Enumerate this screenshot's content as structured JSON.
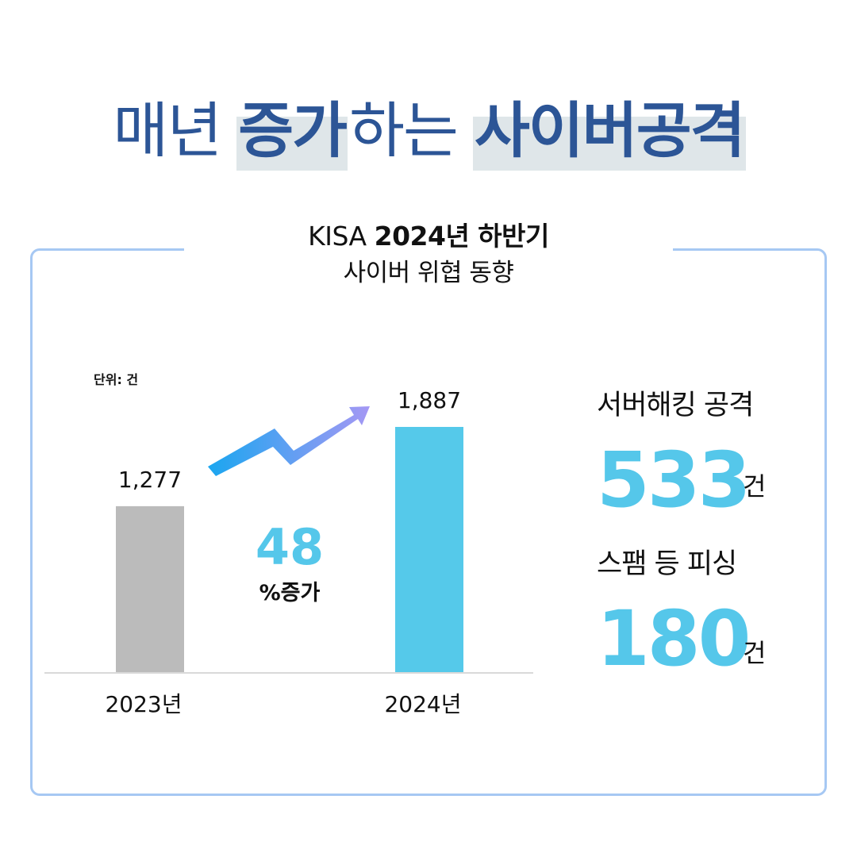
{
  "headline": {
    "seg1": "매년",
    "seg2": "증가",
    "seg3": "하는",
    "seg4": "사이버공격"
  },
  "panel": {
    "title_prefix": "KISA",
    "title_bold": "2024년 하반기",
    "subtitle": "사이버 위협 동향"
  },
  "chart_data": {
    "type": "bar",
    "categories": [
      "2023년",
      "2024년"
    ],
    "values": [
      1277,
      1887
    ],
    "value_labels": [
      "1,277",
      "1,887"
    ],
    "unit_label": "단위: 건",
    "colors": [
      "#bbbbbb",
      "#55c9ea"
    ],
    "ylim": [
      0,
      2000
    ],
    "increase_value": "48",
    "increase_label": "%증가"
  },
  "stats": [
    {
      "label": "서버해킹 공격",
      "value": "533",
      "unit": "건"
    },
    {
      "label": "스팸 등 피싱",
      "value": "180",
      "unit": "건"
    }
  ],
  "colors": {
    "headline": "#2c5596",
    "highlight": "#dfe6e9",
    "accent": "#55c7ea",
    "border": "#a6c8f3",
    "arrow_start": "#1aa6f0",
    "arrow_end": "#a598f4"
  }
}
